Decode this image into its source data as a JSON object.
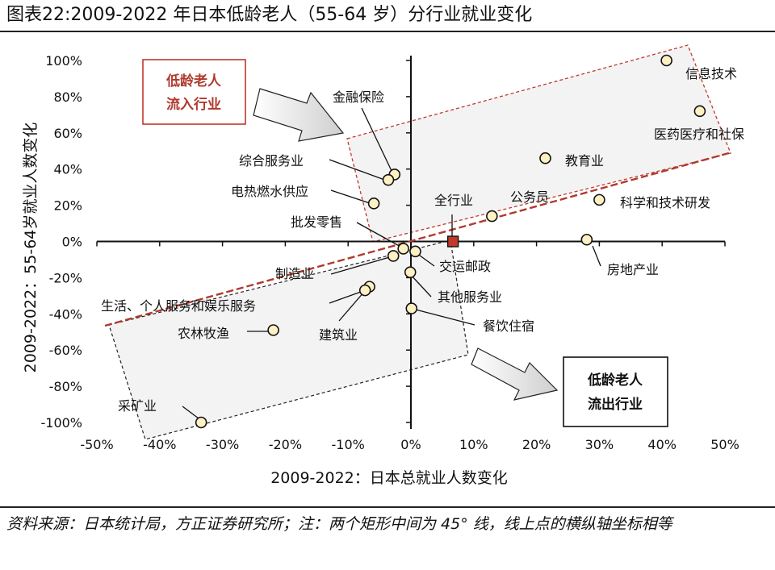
{
  "title": "图表22:2009-2022 年日本低龄老人（55-64 岁）分行业就业变化",
  "footer": "资料来源：日本统计局，方正证券研究所；注：两个矩形中间为 45° 线，线上点的横纵轴坐标相等",
  "chart_data": {
    "type": "scatter",
    "xlabel": "2009-2022：日本总就业人数变化",
    "ylabel": "2009-2022：55-64岁就业人数变化",
    "xlim": [
      -0.5,
      0.5
    ],
    "ylim": [
      -1.0,
      1.0
    ],
    "x_ticks": [
      "-50%",
      "-40%",
      "-30%",
      "-20%",
      "-10%",
      "0%",
      "10%",
      "20%",
      "30%",
      "40%",
      "50%"
    ],
    "y_ticks": [
      "100%",
      "80%",
      "60%",
      "40%",
      "20%",
      "0%",
      "-20%",
      "-40%",
      "-60%",
      "-80%",
      "-100%"
    ],
    "reference_line": "45°",
    "points": [
      {
        "label": "信息技术",
        "x": 0.407,
        "y": 1.0
      },
      {
        "label": "医药医疗和社保",
        "x": 0.46,
        "y": 0.72
      },
      {
        "label": "教育业",
        "x": 0.214,
        "y": 0.46
      },
      {
        "label": "科学和技术研发",
        "x": 0.3,
        "y": 0.23
      },
      {
        "label": "公务员",
        "x": 0.129,
        "y": 0.14
      },
      {
        "label": "房地产业",
        "x": 0.28,
        "y": 0.01
      },
      {
        "label": "金融保险",
        "x": -0.026,
        "y": 0.37
      },
      {
        "label": "综合服务业",
        "x": -0.036,
        "y": 0.34
      },
      {
        "label": "电热燃水供应",
        "x": -0.059,
        "y": 0.21
      },
      {
        "label": "批发零售",
        "x": -0.012,
        "y": -0.04
      },
      {
        "label": "制造业",
        "x": -0.028,
        "y": -0.08
      },
      {
        "label": "交运邮政",
        "x": 0.007,
        "y": -0.055
      },
      {
        "label": "其他服务业",
        "x": -0.001,
        "y": -0.17
      },
      {
        "label": "生活、个人服务和娱乐服务",
        "x": -0.066,
        "y": -0.25
      },
      {
        "label": "建筑业",
        "x": -0.073,
        "y": -0.27
      },
      {
        "label": "餐饮住宿",
        "x": 0.001,
        "y": -0.37
      },
      {
        "label": "农林牧渔",
        "x": -0.219,
        "y": -0.49
      },
      {
        "label": "采矿业",
        "x": -0.334,
        "y": -1.0
      },
      {
        "label": "全行业",
        "x": 0.067,
        "y": 0.0
      }
    ],
    "annotations": {
      "upper_box": "低龄老人流入行业",
      "upper_box_lines": [
        "低龄老人",
        "流入行业"
      ],
      "lower_box": "低龄老人流出行业",
      "lower_box_lines": [
        "低龄老人",
        "流出行业"
      ]
    },
    "colors": {
      "marker_fill": "#fdf0c2",
      "marker_stroke": "#111111",
      "total_marker": "#c0392b",
      "reference_line": "#b03a2e",
      "upper_box_stroke": "#c0392b",
      "upper_box_text": "#b03a2e",
      "lower_box_text": "#111111"
    }
  }
}
